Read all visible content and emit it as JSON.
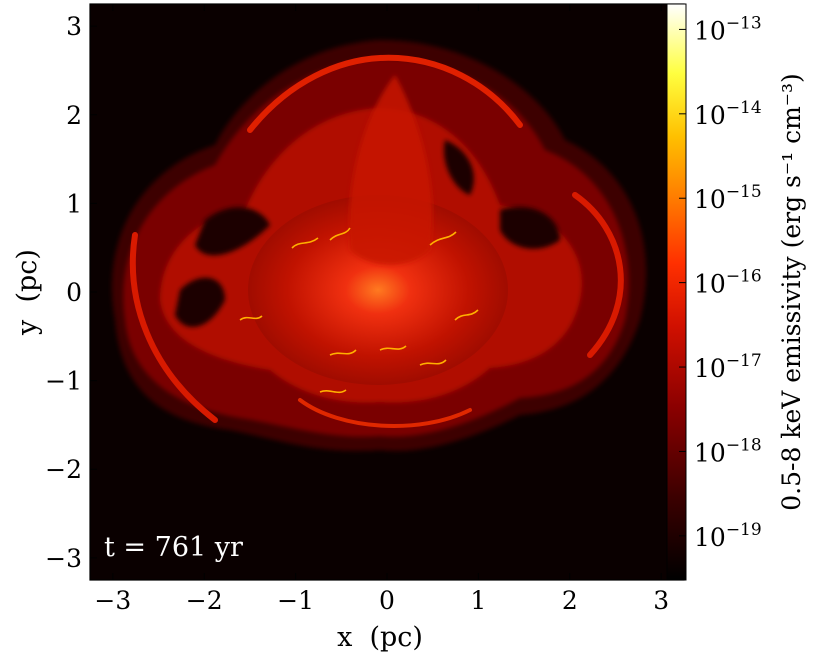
{
  "chart_data": {
    "type": "heatmap",
    "title": "",
    "xlabel": "x  (pc)",
    "ylabel": "y  (pc)",
    "xlim": [
      -3.25,
      3.25
    ],
    "ylim": [
      -3.25,
      3.25
    ],
    "xticks": [
      -3,
      -2,
      -1,
      0,
      1,
      2,
      3
    ],
    "yticks": [
      -3,
      -2,
      -1,
      0,
      1,
      2,
      3
    ],
    "xtick_labels": [
      "−3",
      "−2",
      "−1",
      "0",
      "1",
      "2",
      "3"
    ],
    "ytick_labels": [
      "−3",
      "−2",
      "−1",
      "0",
      "1",
      "2",
      "3"
    ],
    "grid": false,
    "colorbar": {
      "label": "0.5-8 keV emissivity (erg s⁻¹ cm⁻³)",
      "scale": "log",
      "range": [
        3e-20,
        2e-13
      ],
      "ticks": [
        1e-19,
        1e-18,
        1e-17,
        1e-16,
        1e-15,
        1e-14,
        1e-13
      ],
      "tick_exponents": [
        "−19",
        "−18",
        "−17",
        "−16",
        "−15",
        "−14",
        "−13"
      ],
      "colormap_stops": [
        "#000000",
        "#3a0000",
        "#8b0000",
        "#d01000",
        "#ff3000",
        "#ff7a00",
        "#ffc000",
        "#ffff40",
        "#ffffff"
      ]
    },
    "annotation": "t = 761 yr"
  }
}
